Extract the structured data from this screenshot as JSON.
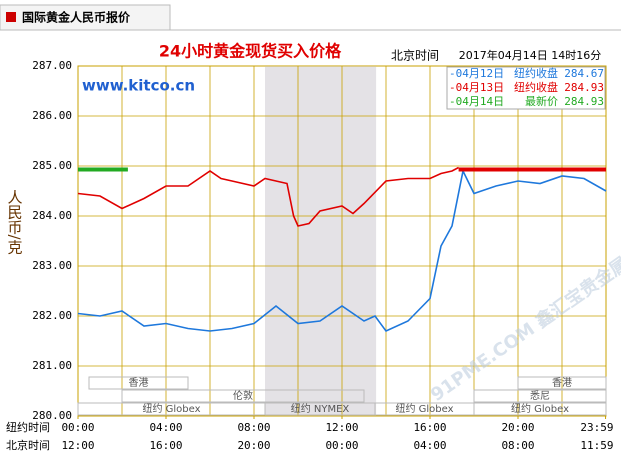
{
  "header": {
    "tab": "国际黄金人民币报价"
  },
  "chart_data": {
    "type": "line",
    "title": "24小时黄金现货买入价格",
    "time_zone_label": "北京时间",
    "timestamp": "2017年04月14日 14时16分",
    "source": "www.kitco.cn",
    "y_label": "人民币/克",
    "x_row_labels": [
      "纽约时间",
      "北京时间"
    ],
    "watermark": "91PME.COM 鑫汇宝贵金属",
    "ylim": [
      280,
      287
    ],
    "yticks": [
      {
        "value": 280,
        "label": "280.00"
      },
      {
        "value": 281,
        "label": "281.00"
      },
      {
        "value": 282,
        "label": "282.00"
      },
      {
        "value": 283,
        "label": "283.00"
      },
      {
        "value": 284,
        "label": "284.00"
      },
      {
        "value": 285,
        "label": "285.00"
      },
      {
        "value": 286,
        "label": "286.00"
      },
      {
        "value": 287,
        "label": "287.00"
      }
    ],
    "xlim": [
      0,
      24
    ],
    "xticks": [
      {
        "value": 0,
        "label": "00:00"
      },
      {
        "value": 4,
        "label": "04:00"
      },
      {
        "value": 8,
        "label": "08:00"
      },
      {
        "value": 12,
        "label": "12:00"
      },
      {
        "value": 16,
        "label": "16:00"
      },
      {
        "value": 20,
        "label": "20:00"
      },
      {
        "value": 23.98,
        "label": "23:59"
      }
    ],
    "xticks_beijing": [
      "12:00",
      "16:00",
      "20:00",
      "00:00",
      "04:00",
      "08:00",
      "11:59"
    ],
    "sessions": [
      "香港",
      "伦敦",
      "纽约 Globex",
      "纽约 NYMEX",
      "纽约 Globex",
      "悉尼",
      "香港",
      "纽约 Globex"
    ],
    "grid": true,
    "series": [
      {
        "name": "-04月12日",
        "market": "纽约收盘",
        "close": 284.67,
        "close_label": "284.67",
        "color": "#1e78dc",
        "x": [
          0,
          1,
          2,
          3,
          4,
          5,
          6,
          7,
          8,
          9,
          10,
          11,
          12,
          13,
          13.5,
          14,
          15,
          16,
          16.5,
          17,
          17.5,
          18,
          19,
          20,
          21,
          22,
          23,
          24
        ],
        "values": [
          282.05,
          282.0,
          282.1,
          281.8,
          281.85,
          281.75,
          281.7,
          281.75,
          281.85,
          282.2,
          281.85,
          281.9,
          282.2,
          281.9,
          282.0,
          281.7,
          281.9,
          282.35,
          283.4,
          283.8,
          284.9,
          284.45,
          284.6,
          284.7,
          284.65,
          284.8,
          284.75,
          284.5
        ]
      },
      {
        "name": "-04月13日",
        "market": "纽约收盘",
        "close": 284.93,
        "close_label": "284.93",
        "color": "#e00000",
        "x": [
          0,
          1,
          2,
          3,
          4,
          5,
          6,
          6.5,
          7,
          8,
          8.5,
          9,
          9.5,
          9.8,
          10,
          10.5,
          11,
          12,
          12.5,
          13,
          14,
          15,
          16,
          16.5,
          17,
          17.3
        ],
        "values": [
          284.45,
          284.4,
          284.15,
          284.35,
          284.6,
          284.6,
          284.9,
          284.75,
          284.7,
          284.6,
          284.75,
          284.7,
          284.65,
          284.0,
          283.8,
          283.85,
          284.1,
          284.2,
          284.05,
          284.25,
          284.7,
          284.75,
          284.75,
          284.85,
          284.9,
          284.97
        ]
      },
      {
        "name": "-04月14日",
        "market": "最新价",
        "close": 284.93,
        "close_label": "284.93",
        "color": "#22aa22",
        "x": [
          0,
          2.27
        ],
        "values": [
          284.93,
          284.93
        ]
      }
    ]
  }
}
